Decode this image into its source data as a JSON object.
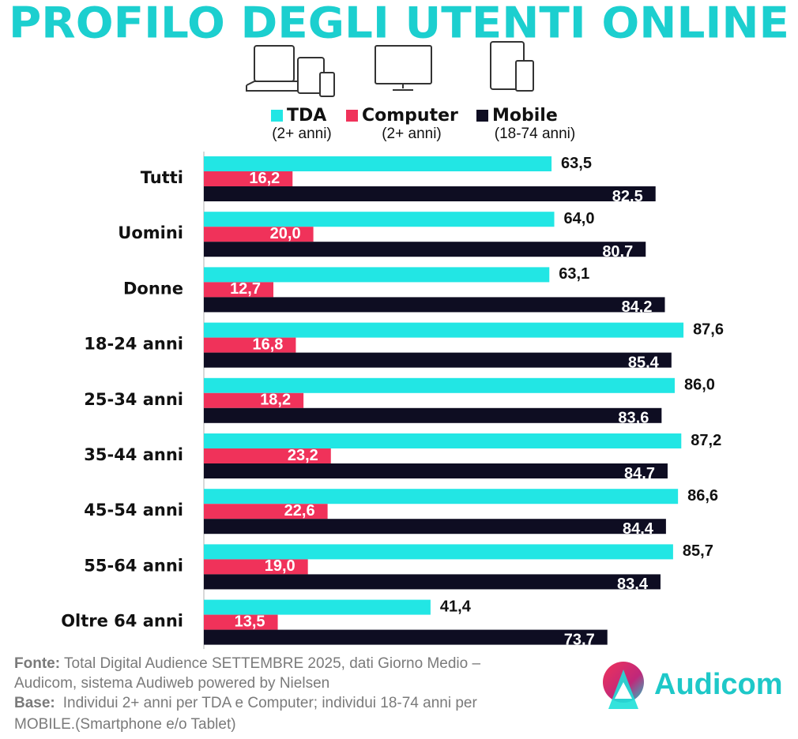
{
  "chart_data": {
    "type": "hbar-grouped",
    "title": "PROFILO DEGLI UTENTI ONLINE",
    "categories": [
      "Tutti",
      "Uomini",
      "Donne",
      "18-24 anni",
      "25-34 anni",
      "35-44 anni",
      "45-54 anni",
      "55-64 anni",
      "Oltre 64 anni"
    ],
    "series": [
      {
        "name": "TDA",
        "subtitle": "(2+ anni)",
        "color": "#22e6e4",
        "values": [
          63.5,
          64.0,
          63.1,
          87.6,
          86.0,
          87.2,
          86.6,
          85.7,
          41.4
        ],
        "value_labels": [
          "63,5",
          "64,0",
          "63,1",
          "87,6",
          "86,0",
          "87,2",
          "86,6",
          "85,7",
          "41,4"
        ]
      },
      {
        "name": "Computer",
        "subtitle": "(2+ anni)",
        "color": "#f0325a",
        "values": [
          16.2,
          20.0,
          12.7,
          16.8,
          18.2,
          23.2,
          22.6,
          19.0,
          13.5
        ],
        "value_labels": [
          "16,2",
          "20,0",
          "12,7",
          "16,8",
          "18,2",
          "23,2",
          "22,6",
          "19,0",
          "13,5"
        ]
      },
      {
        "name": "Mobile",
        "subtitle": "(18-74 anni)",
        "color": "#0e0d22",
        "values": [
          82.5,
          80.7,
          84.2,
          85.4,
          83.6,
          84.7,
          84.4,
          83.4,
          73.7
        ],
        "value_labels": [
          "82,5",
          "80,7",
          "84,2",
          "85,4",
          "83,6",
          "84,7",
          "84,4",
          "83,4",
          "73,7"
        ]
      }
    ]
  },
  "footer": {
    "source_label": "Fonte:",
    "source_lines": [
      "Total Digital Audience SETTEMBRE 2025, dati Giorno Medio –",
      "Audicom, sistema Audiweb powered by Nielsen"
    ],
    "base_label": "Base:",
    "base_lines": [
      "Individui 2+ anni per TDA e Computer; individui 18-74 anni per",
      "MOBILE.(Smartphone e/o Tablet)"
    ]
  },
  "logo": "Audicom"
}
